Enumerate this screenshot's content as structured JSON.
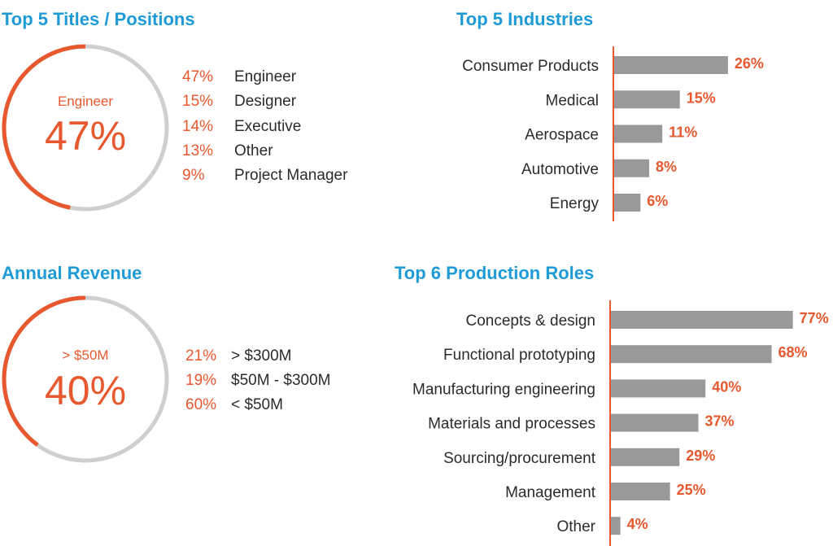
{
  "colors": {
    "accent": "#e8582e",
    "title": "#1e9bd7",
    "bar": "#999999",
    "track": "#cfcfcf"
  },
  "positions": {
    "title": "Top 5 Titles / Positions",
    "donut": {
      "label": "Engineer",
      "value_text": "47%",
      "fraction": 0.47
    },
    "items": [
      {
        "pct": "47%",
        "name": "Engineer"
      },
      {
        "pct": "15%",
        "name": "Designer"
      },
      {
        "pct": "14%",
        "name": "Executive"
      },
      {
        "pct": "13%",
        "name": "Other"
      },
      {
        "pct": "9%",
        "name": "Project Manager"
      }
    ]
  },
  "revenue": {
    "title": "Annual Revenue",
    "donut": {
      "label": "> $50M",
      "value_text": "40%",
      "fraction": 0.4
    },
    "items": [
      {
        "pct": "21%",
        "name": "> $300M"
      },
      {
        "pct": "19%",
        "name": "$50M - $300M"
      },
      {
        "pct": "60%",
        "name": "< $50M"
      }
    ]
  },
  "industries": {
    "title": "Top 5 Industries"
  },
  "roles": {
    "title": "Top 6 Production Roles"
  },
  "chart_data": [
    {
      "type": "bar",
      "orientation": "horizontal",
      "title": "Top 5 Industries",
      "categories": [
        "Consumer Products",
        "Medical",
        "Aerospace",
        "Automotive",
        "Energy"
      ],
      "values": [
        26,
        15,
        11,
        8,
        6
      ],
      "value_labels": [
        "26%",
        "15%",
        "11%",
        "8%",
        "6%"
      ],
      "unit": "%"
    },
    {
      "type": "bar",
      "orientation": "horizontal",
      "title": "Top 6 Production Roles",
      "categories": [
        "Concepts & design",
        "Functional prototyping",
        "Manufacturing engineering",
        "Materials and processes",
        "Sourcing/procurement",
        "Management",
        "Other"
      ],
      "values": [
        77,
        68,
        40,
        37,
        29,
        25,
        4
      ],
      "value_labels": [
        "77%",
        "68%",
        "40%",
        "37%",
        "29%",
        "25%",
        "4%"
      ],
      "unit": "%"
    }
  ]
}
